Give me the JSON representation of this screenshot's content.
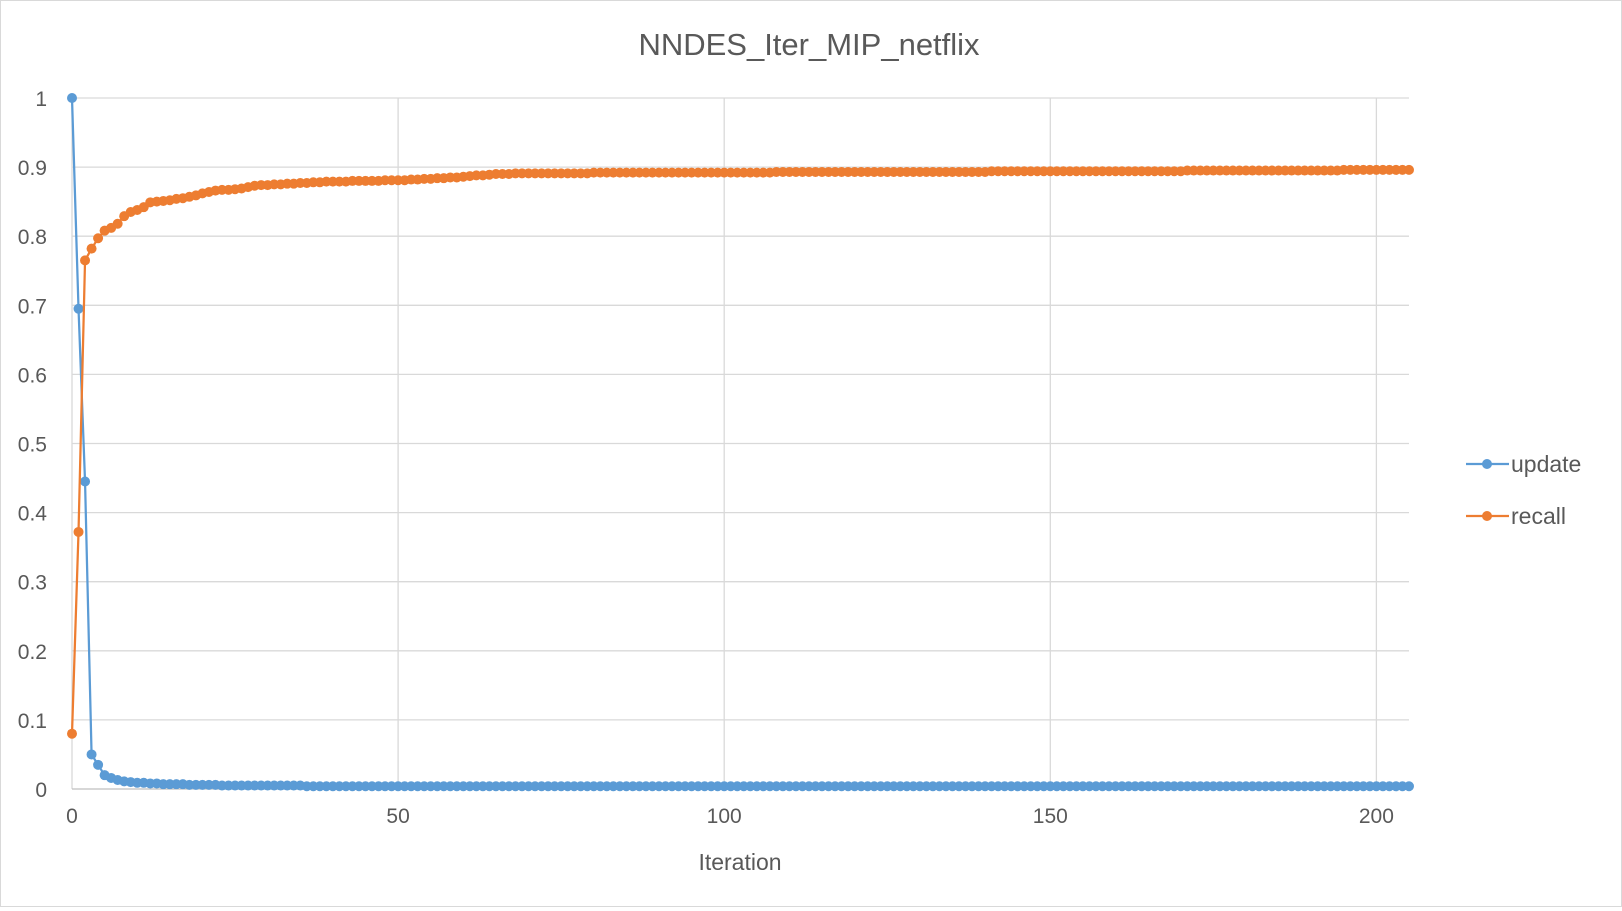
{
  "chart_data": {
    "type": "line",
    "title": "NNDES_Iter_MIP_netflix",
    "xlabel": "Iteration",
    "ylabel": "",
    "xlim": [
      0,
      205
    ],
    "ylim": [
      0,
      1
    ],
    "xticks": [
      0,
      50,
      100,
      150,
      200
    ],
    "xtick_labels": [
      "0",
      "50",
      "100",
      "150",
      "200"
    ],
    "yticks": [
      0,
      0.1,
      0.2,
      0.3,
      0.4,
      0.5,
      0.6,
      0.7,
      0.8,
      0.9,
      1
    ],
    "ytick_labels": [
      "0",
      "0.1",
      "0.2",
      "0.3",
      "0.4",
      "0.5",
      "0.6",
      "0.7",
      "0.8",
      "0.9",
      "1"
    ],
    "grid": true,
    "legend_position": "right",
    "markers": true,
    "series": [
      {
        "name": "update",
        "color": "#5B9BD5",
        "keypoints": [
          [
            0,
            1.0
          ],
          [
            1,
            0.695
          ],
          [
            2,
            0.445
          ],
          [
            3,
            0.05
          ],
          [
            4,
            0.035
          ],
          [
            5,
            0.02
          ],
          [
            6,
            0.016
          ],
          [
            7,
            0.013
          ],
          [
            8,
            0.011
          ],
          [
            10,
            0.009
          ],
          [
            12,
            0.008
          ],
          [
            15,
            0.007
          ],
          [
            20,
            0.006
          ],
          [
            25,
            0.005
          ],
          [
            30,
            0.005
          ],
          [
            40,
            0.004
          ],
          [
            205,
            0.004
          ]
        ]
      },
      {
        "name": "recall",
        "color": "#ED7D31",
        "keypoints": [
          [
            0,
            0.08
          ],
          [
            1,
            0.372
          ],
          [
            2,
            0.765
          ],
          [
            3,
            0.782
          ],
          [
            4,
            0.797
          ],
          [
            5,
            0.808
          ],
          [
            6,
            0.812
          ],
          [
            7,
            0.818
          ],
          [
            8,
            0.829
          ],
          [
            9,
            0.835
          ],
          [
            10,
            0.838
          ],
          [
            11,
            0.842
          ],
          [
            12,
            0.849
          ],
          [
            15,
            0.852
          ],
          [
            18,
            0.857
          ],
          [
            20,
            0.862
          ],
          [
            22,
            0.866
          ],
          [
            26,
            0.869
          ],
          [
            28,
            0.873
          ],
          [
            32,
            0.875
          ],
          [
            36,
            0.877
          ],
          [
            40,
            0.879
          ],
          [
            50,
            0.881
          ],
          [
            55,
            0.883
          ],
          [
            60,
            0.886
          ],
          [
            65,
            0.89
          ],
          [
            70,
            0.891
          ],
          [
            90,
            0.892
          ],
          [
            126,
            0.893
          ],
          [
            185,
            0.895
          ],
          [
            205,
            0.896
          ]
        ]
      }
    ]
  }
}
